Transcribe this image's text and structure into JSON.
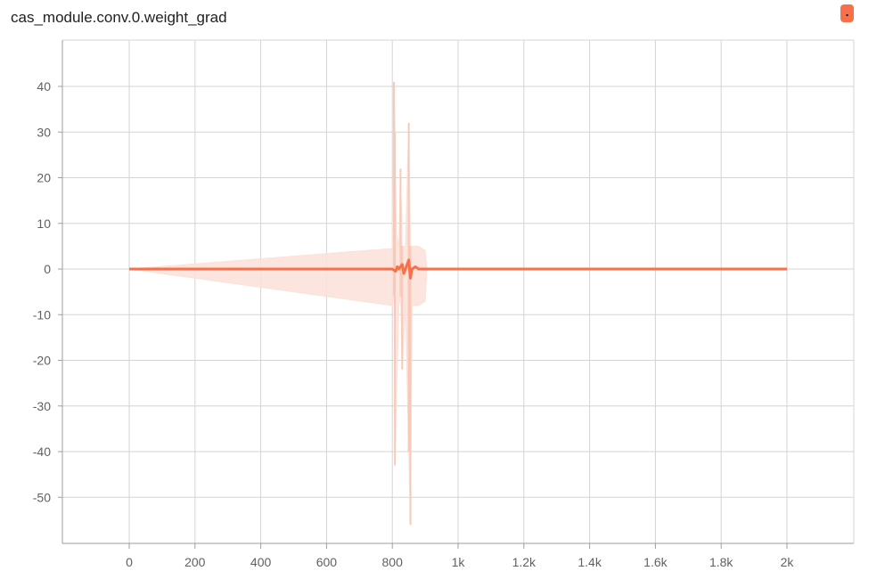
{
  "chart_data": {
    "title": "cas_module.conv.0.weight_grad",
    "type": "area",
    "xlabel": "",
    "ylabel": "",
    "xlim": [
      -200,
      2200
    ],
    "ylim": [
      -60,
      50
    ],
    "x_ticks": [
      0,
      200,
      400,
      600,
      800,
      1000,
      1200,
      1400,
      1600,
      1800,
      2000
    ],
    "x_tick_labels": [
      "0",
      "200",
      "400",
      "600",
      "800",
      "1k",
      "1.2k",
      "1.4k",
      "1.6k",
      "1.8k",
      "2k"
    ],
    "y_ticks": [
      40,
      30,
      20,
      10,
      0,
      -10,
      -20,
      -30,
      -40,
      -50
    ],
    "y_tick_labels": [
      "40",
      "30",
      "20",
      "10",
      "0",
      "-10",
      "-20",
      "-30",
      "-40",
      "-50"
    ],
    "grid": true,
    "series_color": "#f7704b",
    "band_color": "#fbe1d8",
    "series": [
      {
        "values": [
          [
            0,
            0
          ],
          [
            800,
            0
          ],
          [
            810,
            -0.5
          ],
          [
            815,
            0.5
          ],
          [
            820,
            0
          ],
          [
            830,
            1
          ],
          [
            835,
            -1
          ],
          [
            840,
            0
          ],
          [
            850,
            2
          ],
          [
            855,
            -2
          ],
          [
            860,
            0
          ],
          [
            870,
            0.5
          ],
          [
            880,
            0
          ],
          [
            900,
            0
          ],
          [
            2000,
            0
          ]
        ],
        "band_outer": [
          [
            0,
            0,
            0
          ],
          [
            800,
            4.5,
            -8
          ],
          [
            805,
            41,
            -6
          ],
          [
            808,
            30,
            -43
          ],
          [
            812,
            8,
            -30
          ],
          [
            820,
            5,
            -8
          ],
          [
            825,
            22,
            -6
          ],
          [
            830,
            5,
            -22
          ],
          [
            840,
            5,
            -8
          ],
          [
            850,
            32,
            -40
          ],
          [
            855,
            5,
            -56
          ],
          [
            860,
            5,
            -8
          ],
          [
            880,
            5,
            -8
          ],
          [
            900,
            4,
            -7
          ],
          [
            905,
            0,
            0
          ],
          [
            2000,
            0,
            0
          ]
        ]
      }
    ]
  },
  "badge": {
    "label": "."
  }
}
